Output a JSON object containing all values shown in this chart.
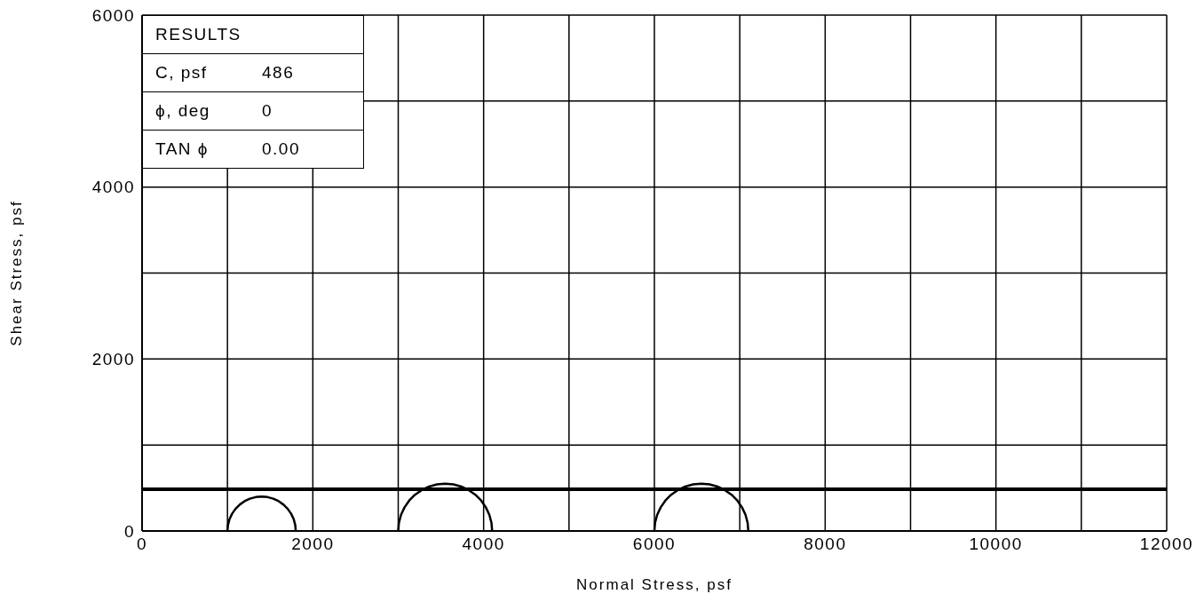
{
  "chart_data": {
    "type": "line",
    "xlabel": "Normal Stress, psf",
    "ylabel": "Shear Stress, psf",
    "annotations": [
      "RESULTS",
      "C, psf",
      "486",
      "ϕ, deg",
      "0",
      "TAN ϕ",
      "0.00"
    ],
    "xlim": [
      0,
      12000
    ],
    "ylim": [
      0,
      6000
    ],
    "xticks": [
      0,
      {
        "value": 1000,
        "label": null
      },
      2000,
      {
        "value": 3000,
        "label": null
      },
      4000,
      {
        "value": 5000,
        "label": null
      },
      6000,
      {
        "value": 7000,
        "label": null
      },
      8000,
      {
        "value": 9000,
        "label": null
      },
      10000,
      {
        "value": 11000,
        "label": null
      },
      12000
    ],
    "yticks": [
      0,
      {
        "value": 1000,
        "label": null
      },
      2000,
      {
        "value": 3000,
        "label": null
      },
      4000,
      {
        "value": 5000,
        "label": null
      },
      6000
    ],
    "grid": true,
    "marker": "none",
    "line_style": "solid",
    "series": [
      {
        "color": "#000000",
        "x": [
          0,
          12000
        ],
        "values": [
          486,
          486
        ]
      },
      {
        "color": "#000000",
        "x": [
          1800,
          1794,
          1776,
          1746,
          1706,
          1657,
          1600,
          1537,
          1469,
          1400,
          1331,
          1263,
          1200,
          1143,
          1094,
          1054,
          1024,
          1006,
          1000
        ],
        "values": [
          0,
          69,
          137,
          200,
          257,
          306,
          346,
          376,
          394,
          400,
          394,
          376,
          346,
          306,
          257,
          200,
          137,
          69,
          0
        ]
      },
      {
        "color": "#000000",
        "x": [
          4100,
          4092,
          4067,
          4026,
          3971,
          3904,
          3825,
          3738,
          3646,
          3550,
          3454,
          3362,
          3275,
          3196,
          3129,
          3074,
          3033,
          3008,
          3000
        ],
        "values": [
          0,
          96,
          188,
          275,
          354,
          421,
          476,
          517,
          542,
          550,
          542,
          517,
          476,
          421,
          354,
          275,
          188,
          96,
          0
        ]
      },
      {
        "color": "#000000",
        "x": [
          7100,
          7092,
          7067,
          7026,
          6971,
          6904,
          6825,
          6738,
          6646,
          6550,
          6454,
          6362,
          6275,
          6196,
          6129,
          6074,
          6033,
          6008,
          6000
        ],
        "values": [
          0,
          96,
          188,
          275,
          354,
          421,
          476,
          517,
          542,
          550,
          542,
          517,
          476,
          421,
          354,
          275,
          188,
          96,
          0
        ]
      }
    ]
  }
}
